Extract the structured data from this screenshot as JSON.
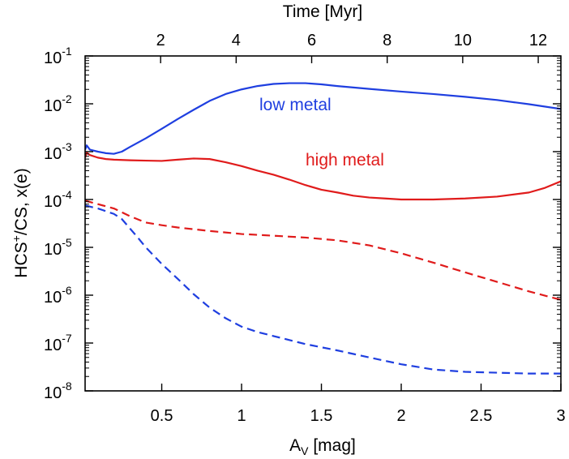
{
  "chart_data": {
    "type": "line",
    "x_axis_bottom": {
      "label_main": "A",
      "label_sub": "V",
      "label_rest": " [mag]",
      "range": [
        0.02,
        3.0
      ],
      "ticks": [
        0.5,
        1,
        1.5,
        2,
        2.5,
        3
      ],
      "tick_labels": [
        "0.5",
        "1",
        "1.5",
        "2",
        "2.5",
        "3"
      ]
    },
    "x_axis_top": {
      "label": "Time [Myr]",
      "range": [
        0,
        12.6
      ],
      "ticks": [
        2,
        4,
        6,
        8,
        10,
        12
      ],
      "tick_labels": [
        "2",
        "4",
        "6",
        "8",
        "10",
        "12"
      ]
    },
    "y_axis": {
      "label_parts": [
        "HCS",
        "+",
        "/CS, x(e)"
      ],
      "scale": "log",
      "range": [
        1e-08,
        0.1
      ],
      "ticks": [
        {
          "value": 0.1,
          "base": "10",
          "exp": "-1"
        },
        {
          "value": 0.01,
          "base": "10",
          "exp": "-2"
        },
        {
          "value": 0.001,
          "base": "10",
          "exp": "-3"
        },
        {
          "value": 0.0001,
          "base": "10",
          "exp": "-4"
        },
        {
          "value": 1e-05,
          "base": "10",
          "exp": "-5"
        },
        {
          "value": 1e-06,
          "base": "10",
          "exp": "-6"
        },
        {
          "value": 1e-07,
          "base": "10",
          "exp": "-7"
        },
        {
          "value": 1e-08,
          "base": "10",
          "exp": "-8"
        }
      ]
    },
    "grid": false,
    "series": [
      {
        "name": "low metal",
        "quantity": "HCS+/CS",
        "color": "#1f3fe0",
        "style": "solid",
        "x": [
          0.02,
          0.03,
          0.05,
          0.1,
          0.15,
          0.2,
          0.25,
          0.3,
          0.4,
          0.5,
          0.6,
          0.7,
          0.8,
          0.9,
          1.0,
          1.1,
          1.2,
          1.3,
          1.4,
          1.5,
          1.6,
          1.8,
          2.0,
          2.2,
          2.4,
          2.6,
          2.8,
          3.0
        ],
        "y": [
          0.0011,
          0.00135,
          0.0011,
          0.001,
          0.00093,
          0.0009,
          0.001,
          0.00125,
          0.0019,
          0.003,
          0.0048,
          0.0075,
          0.0115,
          0.016,
          0.02,
          0.0235,
          0.026,
          0.027,
          0.027,
          0.0255,
          0.0235,
          0.0205,
          0.018,
          0.016,
          0.014,
          0.012,
          0.0098,
          0.0078
        ]
      },
      {
        "name": "high metal",
        "quantity": "HCS+/CS",
        "color": "#e01b1b",
        "style": "solid",
        "x": [
          0.02,
          0.03,
          0.05,
          0.1,
          0.15,
          0.2,
          0.3,
          0.4,
          0.5,
          0.6,
          0.7,
          0.8,
          0.9,
          1.0,
          1.1,
          1.2,
          1.3,
          1.4,
          1.5,
          1.6,
          1.7,
          1.8,
          1.9,
          2.0,
          2.1,
          2.2,
          2.4,
          2.6,
          2.8,
          2.9,
          3.0
        ],
        "y": [
          0.00075,
          0.00095,
          0.00085,
          0.00075,
          0.0007,
          0.00068,
          0.00066,
          0.00065,
          0.00064,
          0.00068,
          0.00072,
          0.0007,
          0.0006,
          0.0005,
          0.0004,
          0.00033,
          0.00026,
          0.0002,
          0.00016,
          0.00014,
          0.00012,
          0.00011,
          0.000105,
          0.0001,
          0.0001,
          0.0001,
          0.000105,
          0.000115,
          0.00014,
          0.000175,
          0.00024
        ]
      },
      {
        "name": "high metal x(e)",
        "quantity": "x(e)",
        "color": "#e01b1b",
        "style": "dashed",
        "x": [
          0.02,
          0.1,
          0.2,
          0.3,
          0.4,
          0.5,
          0.6,
          0.8,
          1.0,
          1.2,
          1.4,
          1.6,
          1.8,
          2.0,
          2.2,
          2.4,
          2.6,
          2.8,
          3.0
        ],
        "y": [
          9.5e-05,
          8e-05,
          6.5e-05,
          4.5e-05,
          3.3e-05,
          2.9e-05,
          2.6e-05,
          2.2e-05,
          1.9e-05,
          1.75e-05,
          1.6e-05,
          1.4e-05,
          1.1e-05,
          7.5e-06,
          4.8e-06,
          3e-06,
          1.9e-06,
          1.2e-06,
          8e-07
        ]
      },
      {
        "name": "low metal x(e)",
        "quantity": "x(e)",
        "color": "#1f3fe0",
        "style": "dashed",
        "x": [
          0.02,
          0.1,
          0.2,
          0.25,
          0.3,
          0.35,
          0.4,
          0.5,
          0.6,
          0.7,
          0.8,
          0.9,
          1.0,
          1.1,
          1.2,
          1.4,
          1.6,
          1.8,
          2.0,
          2.2,
          2.4,
          2.6,
          2.8,
          3.0
        ],
        "y": [
          7.5e-05,
          6.5e-05,
          5e-05,
          3.9e-05,
          2.5e-05,
          1.6e-05,
          1e-05,
          4.5e-06,
          2.2e-06,
          1.05e-06,
          5.5e-07,
          3.3e-07,
          2.2e-07,
          1.7e-07,
          1.4e-07,
          9.5e-08,
          7e-08,
          5e-08,
          3.6e-08,
          2.8e-08,
          2.5e-08,
          2.4e-08,
          2.3e-08,
          2.3e-08
        ]
      }
    ],
    "annotations": [
      {
        "text": "low metal",
        "color": "#1f3fe0",
        "x": 1.1,
        "y": 0.014
      },
      {
        "text": "high metal",
        "color": "#e01b1b",
        "x": 1.4,
        "y": 0.001
      }
    ]
  }
}
